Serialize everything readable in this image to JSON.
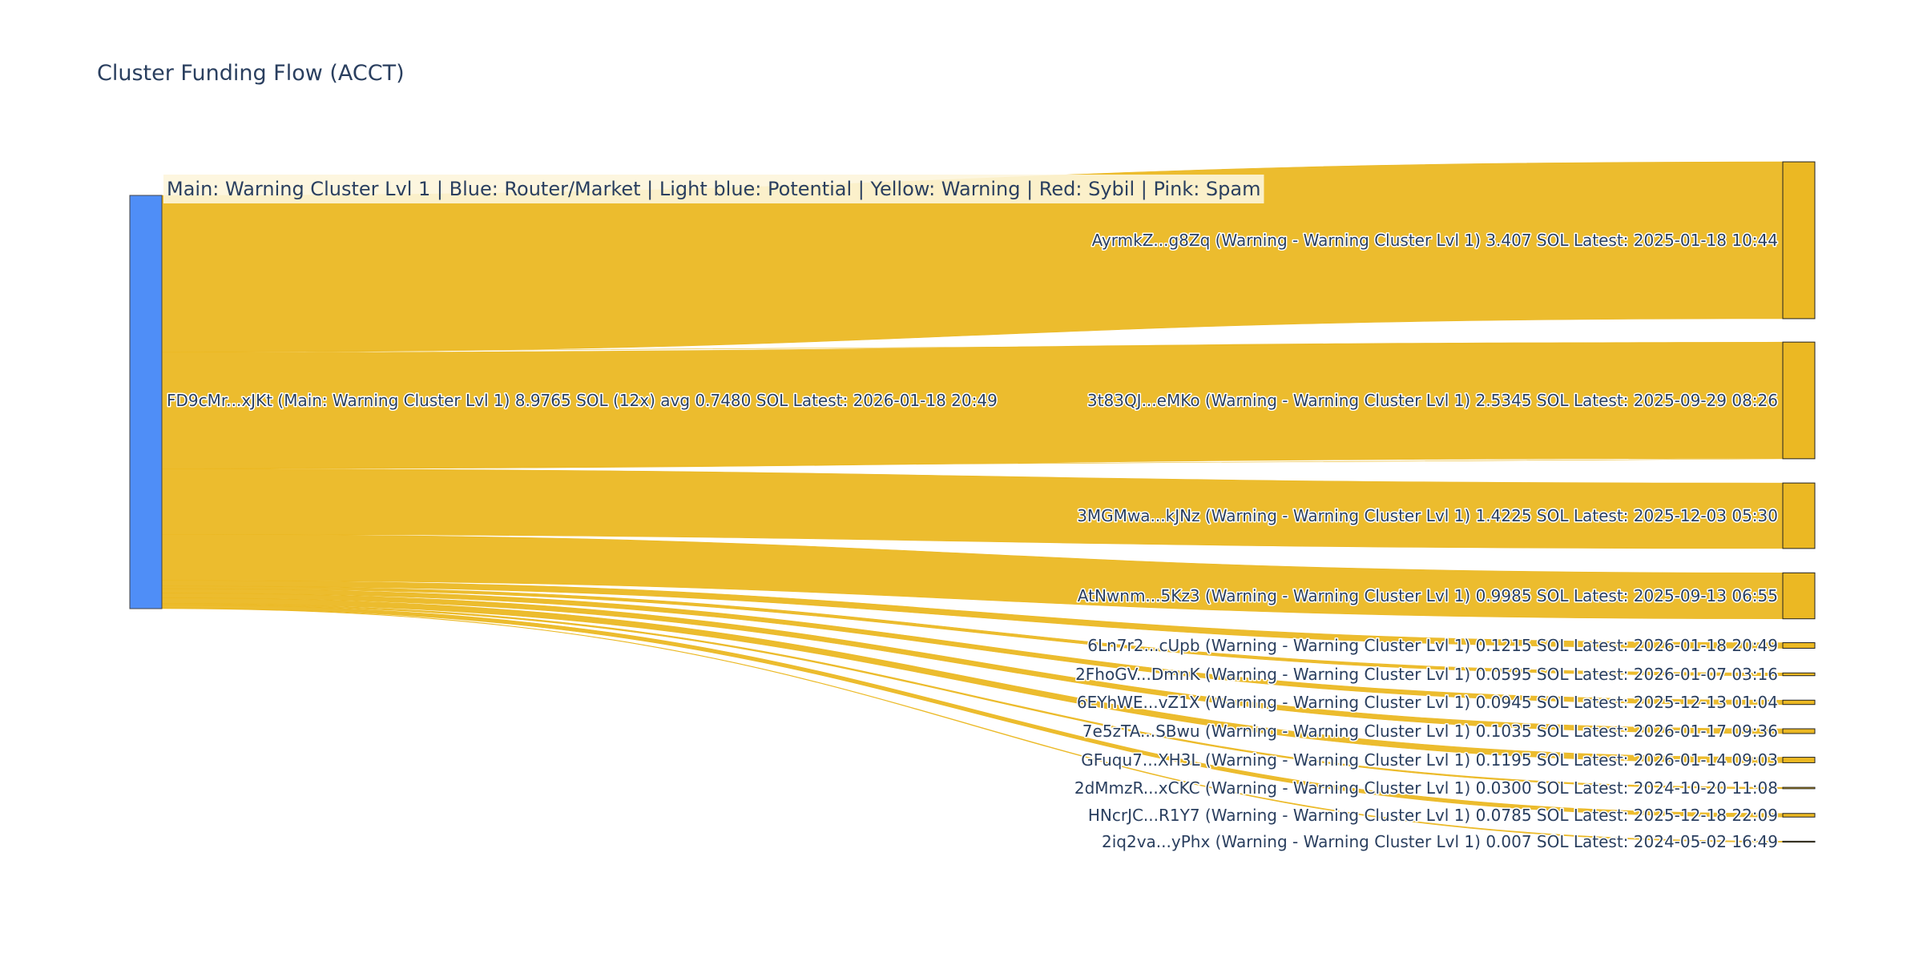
{
  "title": "Cluster Funding Flow (ACCT)",
  "legend_note": "Main: Warning Cluster Lvl 1  |  Blue: Router/Market | Light blue: Potential | Yellow: Warning | Red: Sybil | Pink: Spam",
  "colors": {
    "source_node": "#4f8ef7",
    "target_node": "#ebb823",
    "link": "#ebb823",
    "node_border": "#444444",
    "text": "#2a3f5f"
  },
  "chart_data": {
    "type": "sankey",
    "title": "Cluster Funding Flow (ACCT)",
    "source": {
      "name": "FD9cMr...xJKt",
      "label": "FD9cMr...xJKt (Main: Warning Cluster Lvl 1) 8.9765 SOL (12x) avg 0.7480 SOL Latest: 2026-01-18 20:49",
      "total": 8.9765,
      "count": 12,
      "avg": 0.748
    },
    "targets": [
      {
        "name": "AyrmkZ...g8Zq",
        "value": 3.407,
        "label": "AyrmkZ...g8Zq (Warning - Warning Cluster Lvl 1) 3.407 SOL Latest: 2025-01-18 10:44"
      },
      {
        "name": "3t83QJ...eMKo",
        "value": 2.5345,
        "label": "3t83QJ...eMKo (Warning - Warning Cluster Lvl 1) 2.5345 SOL Latest: 2025-09-29 08:26"
      },
      {
        "name": "3MGMwa...kJNz",
        "value": 1.4225,
        "label": "3MGMwa...kJNz (Warning - Warning Cluster Lvl 1) 1.4225 SOL Latest: 2025-12-03 05:30"
      },
      {
        "name": "AtNwnm...5Kz3",
        "value": 0.9985,
        "label": "AtNwnm...5Kz3 (Warning - Warning Cluster Lvl 1) 0.9985 SOL Latest: 2025-09-13 06:55"
      },
      {
        "name": "6Ln7r2...cUpb",
        "value": 0.1215,
        "label": "6Ln7r2...cUpb (Warning - Warning Cluster Lvl 1) 0.1215 SOL Latest: 2026-01-18 20:49"
      },
      {
        "name": "2FhoGV...DmnK",
        "value": 0.0595,
        "label": "2FhoGV...DmnK (Warning - Warning Cluster Lvl 1) 0.0595 SOL Latest: 2026-01-07 03:16"
      },
      {
        "name": "6EYhWE...vZ1X",
        "value": 0.0945,
        "label": "6EYhWE...vZ1X (Warning - Warning Cluster Lvl 1) 0.0945 SOL Latest: 2025-12-13 01:04"
      },
      {
        "name": "7e5zTA...SBwu",
        "value": 0.1035,
        "label": "7e5zTA...SBwu (Warning - Warning Cluster Lvl 1) 0.1035 SOL Latest: 2026-01-17 09:36"
      },
      {
        "name": "GFuqu7...XH3L",
        "value": 0.1195,
        "label": "GFuqu7...XH3L (Warning - Warning Cluster Lvl 1) 0.1195 SOL Latest: 2026-01-14 09:03"
      },
      {
        "name": "2dMmzR...xCKC",
        "value": 0.03,
        "label": "2dMmzR...xCKC (Warning - Warning Cluster Lvl 1) 0.0300 SOL Latest: 2024-10-20 11:08"
      },
      {
        "name": "HNcrJC...R1Y7",
        "value": 0.0785,
        "label": "HNcrJC...R1Y7 (Warning - Warning Cluster Lvl 1) 0.0785 SOL Latest: 2025-12-18 22:09"
      },
      {
        "name": "2iq2va...yPhx",
        "value": 0.007,
        "label": "2iq2va...yPhx (Warning - Warning Cluster Lvl 1) 0.007 SOL Latest: 2024-05-02 16:49"
      }
    ]
  }
}
